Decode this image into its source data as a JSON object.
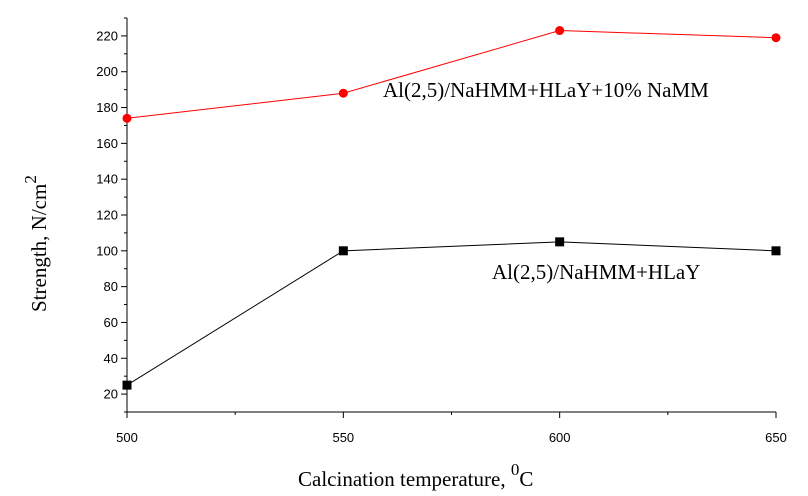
{
  "chart_data": {
    "type": "line",
    "xlabel": "Calcination temperature, ",
    "xlabel_superscript": "0",
    "xlabel_suffix": "C",
    "ylabel": "Strength, N/cm",
    "ylabel_superscript": "2",
    "xlim": [
      500,
      650
    ],
    "ylim": [
      10,
      230
    ],
    "x_ticks": [
      500,
      550,
      600,
      650
    ],
    "y_ticks": [
      20,
      40,
      60,
      80,
      100,
      120,
      140,
      160,
      180,
      200,
      220
    ],
    "grid": false,
    "series": [
      {
        "name": "Al(2,5)/NaHMM+HLaY+10% NaMM",
        "color": "#ff0000",
        "marker": "circle",
        "x": [
          500,
          550,
          600,
          650
        ],
        "y": [
          174,
          188,
          223,
          219
        ]
      },
      {
        "name": "Al(2,5)/NaHMM+HLaY",
        "color": "#000000",
        "marker": "square",
        "x": [
          500,
          550,
          600,
          650
        ],
        "y": [
          25,
          100,
          105,
          100
        ]
      }
    ]
  }
}
